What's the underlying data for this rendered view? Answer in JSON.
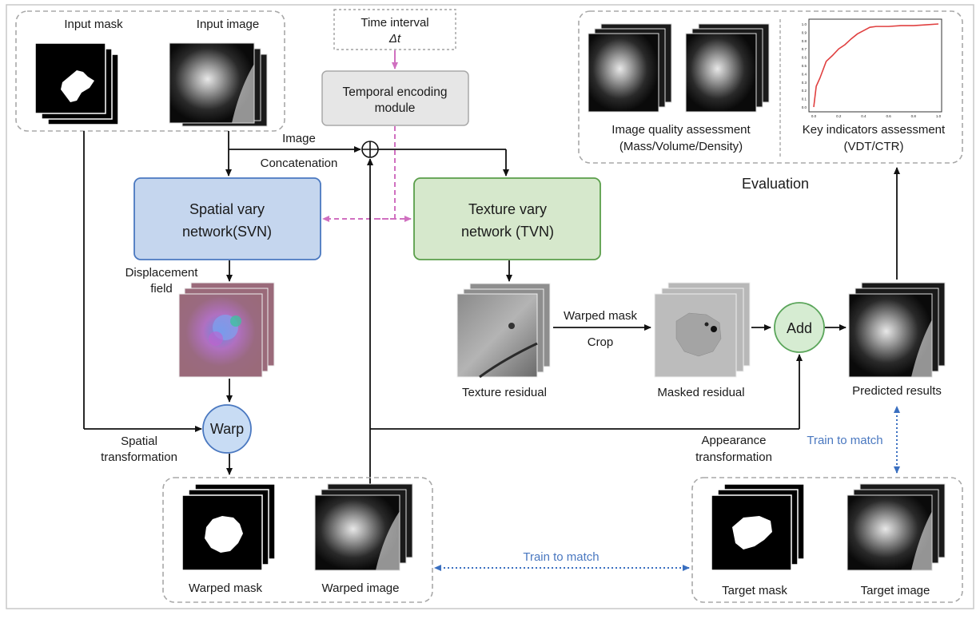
{
  "labels": {
    "input_mask": "Input mask",
    "input_image": "Input image",
    "time_interval_line1": "Time interval",
    "time_interval_line2": "Δt",
    "temporal_line1": "Temporal encoding",
    "temporal_line2": "module",
    "image": "Image",
    "concatenation": "Concatenation",
    "svn_line1": "Spatial vary",
    "svn_line2": "network(SVN)",
    "tvn_line1": "Texture vary",
    "tvn_line2": "network (TVN)",
    "displacement_line1": "Displacement",
    "displacement_line2": "field",
    "warp": "Warp",
    "spatial_line1": "Spatial",
    "spatial_line2": "transformation",
    "texture_residual": "Texture residual",
    "warped_mask_edge": "Warped mask",
    "crop": "Crop",
    "masked_residual": "Masked residual",
    "add": "Add",
    "predicted_results": "Predicted results",
    "evaluation": "Evaluation",
    "iqa_line1": "Image quality assessment",
    "iqa_line2": "(Mass/Volume/Density)",
    "kia_line1": "Key indicators assessment",
    "kia_line2": "(VDT/CTR)",
    "appearance_line1": "Appearance",
    "appearance_line2": "transformation",
    "train_to_match_right": "Train to match",
    "train_to_match_bottom": "Train to match",
    "warped_mask": "Warped mask",
    "warped_image": "Warped image",
    "target_mask": "Target mask",
    "target_image": "Target image",
    "plus_symbol": "⊕"
  },
  "colors": {
    "svn_fill": "#c5d6ee",
    "svn_stroke": "#4a78c0",
    "tvn_fill": "#d6e8cc",
    "tvn_stroke": "#5a9e4a",
    "add_fill": "#d6ecd2",
    "add_stroke": "#5aa55a",
    "warp_fill": "#c8dcf4",
    "warp_stroke": "#4a78c0",
    "temporal_fill": "#e6e6e6",
    "temporal_stroke": "#a8a8a8",
    "dashed_magenta": "#d070c0",
    "train_blue": "#3a6fc0",
    "chart_line": "#e04040",
    "group_border": "#a8a8a8"
  },
  "chart_data": {
    "type": "line",
    "xlim": [
      0,
      1.0
    ],
    "ylim": [
      0,
      1.0
    ],
    "xticks": [
      "0.0",
      "0.2",
      "0.4",
      "0.6",
      "0.8",
      "1.0"
    ],
    "yticks": [
      "0.0",
      "0.1",
      "0.2",
      "0.3",
      "0.4",
      "0.5",
      "0.6",
      "0.7",
      "0.8",
      "0.9",
      "1.0"
    ],
    "series": [
      {
        "x": [
          0.0,
          0.02,
          0.05,
          0.1,
          0.15,
          0.2,
          0.25,
          0.3,
          0.35,
          0.4,
          0.45,
          0.5,
          0.6,
          0.7,
          0.8,
          0.9,
          1.0
        ],
        "y": [
          0.0,
          0.25,
          0.35,
          0.55,
          0.62,
          0.7,
          0.75,
          0.82,
          0.88,
          0.92,
          0.96,
          0.97,
          0.97,
          0.98,
          0.98,
          0.99,
          1.0
        ]
      }
    ]
  }
}
